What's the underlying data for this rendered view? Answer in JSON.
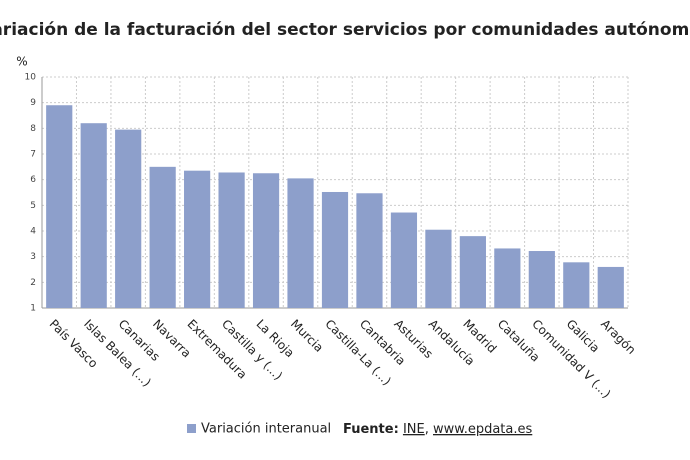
{
  "chart_data": {
    "type": "bar",
    "title": "Variación de la facturación del sector servicios por comunidades autónomas",
    "ylabel": "%",
    "categories": [
      "País Vasco",
      "Islas Balea (...)",
      "Canarias",
      "Navarra",
      "Extremadura",
      "Castilla y (...)",
      "La Rioja",
      "Murcia",
      "Castilla-La (...)",
      "Cantabria",
      "Asturias",
      "Andalucía",
      "Madrid",
      "Cataluña",
      "Comunidad V (...)",
      "Galicia",
      "Aragón"
    ],
    "series": [
      {
        "name": "Variación interanual",
        "color": "#8d9fcb",
        "values": [
          8.9,
          8.2,
          7.95,
          6.5,
          6.35,
          6.28,
          6.25,
          6.05,
          5.52,
          5.47,
          4.72,
          4.05,
          3.8,
          3.32,
          3.22,
          2.78,
          2.6
        ]
      }
    ],
    "ylim": [
      1,
      10
    ],
    "yticks": [
      1,
      2,
      3,
      4,
      5,
      6,
      7,
      8,
      9,
      10
    ],
    "grid": true,
    "source": {
      "label": "Fuente:",
      "parts": [
        "INE",
        ",",
        "www.epdata.es"
      ]
    }
  }
}
